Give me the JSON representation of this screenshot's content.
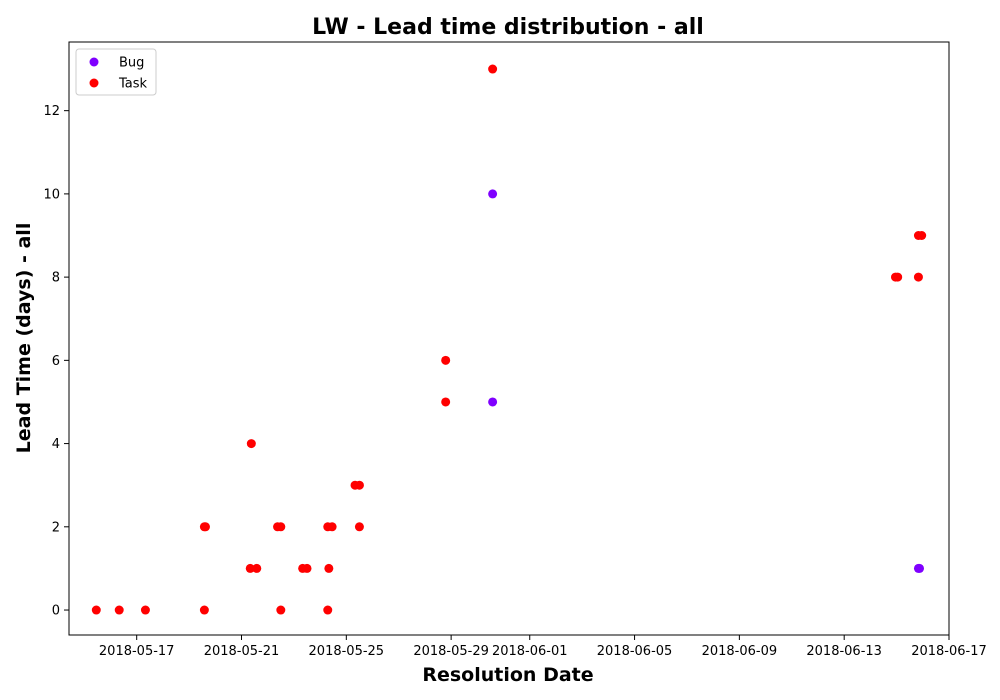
{
  "chart_data": {
    "type": "scatter",
    "title": "LW - Lead time distribution - all",
    "xlabel": "Resolution Date",
    "ylabel": "Lead Time (days) - all",
    "xlim": [
      "2018-05-14T10:00",
      "2018-06-17T00:00"
    ],
    "ylim": [
      -0.6,
      13.65
    ],
    "grid": false,
    "legend_position": "top-left",
    "x_ticks": [
      "2018-05-17",
      "2018-05-21",
      "2018-05-25",
      "2018-05-29",
      "2018-06-01",
      "2018-06-05",
      "2018-06-09",
      "2018-06-13",
      "2018-06-17"
    ],
    "y_ticks": [
      0,
      2,
      4,
      6,
      8,
      10,
      12
    ],
    "series": [
      {
        "name": "Bug",
        "color": "#7f00ff",
        "points": [
          {
            "x": "2018-05-30T14:00",
            "y": 10
          },
          {
            "x": "2018-05-30T14:00",
            "y": 5
          },
          {
            "x": "2018-06-15T20:00",
            "y": 1
          },
          {
            "x": "2018-06-15T21:00",
            "y": 1
          }
        ]
      },
      {
        "name": "Task",
        "color": "#ff0000",
        "points": [
          {
            "x": "2018-05-15T11:00",
            "y": 0
          },
          {
            "x": "2018-05-16T08:00",
            "y": 0
          },
          {
            "x": "2018-05-17T08:00",
            "y": 0
          },
          {
            "x": "2018-05-19T14:00",
            "y": 0
          },
          {
            "x": "2018-05-19T14:00",
            "y": 2
          },
          {
            "x": "2018-05-19T15:00",
            "y": 2
          },
          {
            "x": "2018-05-21T08:00",
            "y": 1
          },
          {
            "x": "2018-05-21T09:00",
            "y": 4
          },
          {
            "x": "2018-05-21T14:00",
            "y": 1
          },
          {
            "x": "2018-05-22T09:00",
            "y": 2
          },
          {
            "x": "2018-05-22T12:00",
            "y": 2
          },
          {
            "x": "2018-05-22T12:00",
            "y": 0
          },
          {
            "x": "2018-05-23T08:00",
            "y": 1
          },
          {
            "x": "2018-05-23T12:00",
            "y": 1
          },
          {
            "x": "2018-05-24T07:00",
            "y": 2
          },
          {
            "x": "2018-05-24T07:00",
            "y": 0
          },
          {
            "x": "2018-05-24T08:00",
            "y": 1
          },
          {
            "x": "2018-05-24T11:00",
            "y": 2
          },
          {
            "x": "2018-05-25T08:00",
            "y": 3
          },
          {
            "x": "2018-05-25T12:00",
            "y": 3
          },
          {
            "x": "2018-05-25T12:00",
            "y": 2
          },
          {
            "x": "2018-05-28T19:00",
            "y": 6
          },
          {
            "x": "2018-05-28T19:00",
            "y": 5
          },
          {
            "x": "2018-05-30T14:00",
            "y": 13
          },
          {
            "x": "2018-06-14T23:00",
            "y": 8
          },
          {
            "x": "2018-06-15T01:00",
            "y": 8
          },
          {
            "x": "2018-06-15T20:00",
            "y": 9
          },
          {
            "x": "2018-06-15T23:00",
            "y": 9
          },
          {
            "x": "2018-06-15T20:00",
            "y": 8
          }
        ]
      }
    ]
  }
}
